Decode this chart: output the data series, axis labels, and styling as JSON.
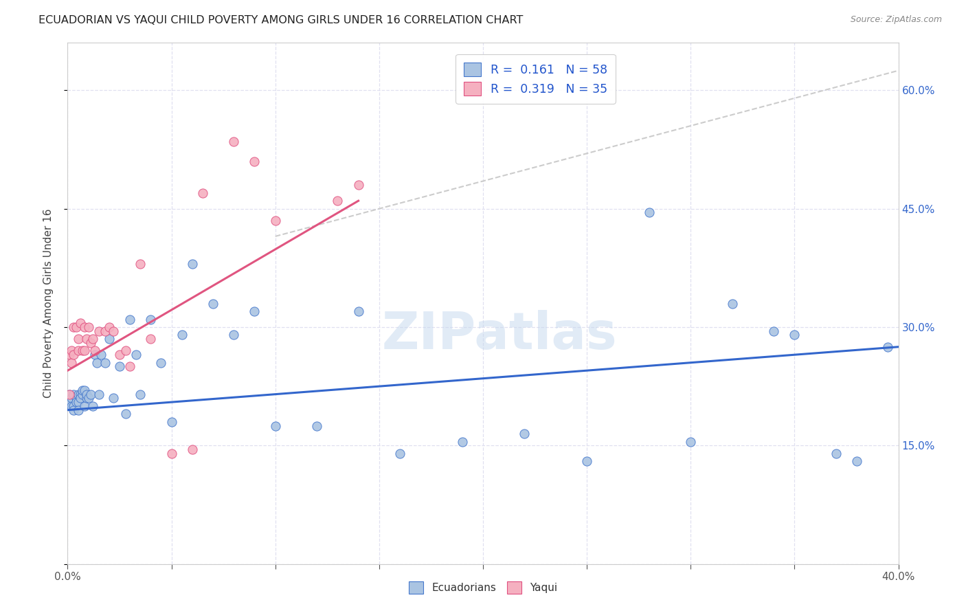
{
  "title": "ECUADORIAN VS YAQUI CHILD POVERTY AMONG GIRLS UNDER 16 CORRELATION CHART",
  "source": "Source: ZipAtlas.com",
  "ylabel": "Child Poverty Among Girls Under 16",
  "xlim": [
    0.0,
    0.4
  ],
  "ylim": [
    0.0,
    0.66
  ],
  "yticks": [
    0.0,
    0.15,
    0.3,
    0.45,
    0.6
  ],
  "ytick_labels_right": [
    "",
    "15.0%",
    "30.0%",
    "45.0%",
    "60.0%"
  ],
  "xtick_vals": [
    0.0,
    0.05,
    0.1,
    0.15,
    0.2,
    0.25,
    0.3,
    0.35,
    0.4
  ],
  "legend_line1": "R =  0.161   N = 58",
  "legend_line2": "R =  0.319   N = 35",
  "watermark": "ZIPatlas",
  "ecu_color": "#aac4e2",
  "ecu_edge": "#4477cc",
  "yaqui_color": "#f5b0c0",
  "yaqui_edge": "#e05080",
  "ecu_line_color": "#3366cc",
  "yaqui_line_color": "#e05580",
  "dash_color": "#cccccc",
  "grid_color": "#e0e0f0",
  "ecuadorians_x": [
    0.001,
    0.001,
    0.002,
    0.002,
    0.003,
    0.003,
    0.003,
    0.004,
    0.004,
    0.005,
    0.005,
    0.005,
    0.006,
    0.006,
    0.007,
    0.007,
    0.008,
    0.008,
    0.009,
    0.009,
    0.01,
    0.011,
    0.012,
    0.013,
    0.014,
    0.015,
    0.016,
    0.018,
    0.02,
    0.022,
    0.025,
    0.028,
    0.03,
    0.033,
    0.035,
    0.04,
    0.045,
    0.05,
    0.055,
    0.06,
    0.07,
    0.08,
    0.09,
    0.1,
    0.12,
    0.14,
    0.16,
    0.19,
    0.22,
    0.25,
    0.28,
    0.3,
    0.32,
    0.34,
    0.35,
    0.37,
    0.38,
    0.395
  ],
  "ecuadorians_y": [
    0.215,
    0.205,
    0.21,
    0.2,
    0.215,
    0.2,
    0.195,
    0.21,
    0.205,
    0.215,
    0.205,
    0.195,
    0.215,
    0.21,
    0.215,
    0.22,
    0.22,
    0.2,
    0.21,
    0.215,
    0.21,
    0.215,
    0.2,
    0.265,
    0.255,
    0.215,
    0.265,
    0.255,
    0.285,
    0.21,
    0.25,
    0.19,
    0.31,
    0.265,
    0.215,
    0.31,
    0.255,
    0.18,
    0.29,
    0.38,
    0.33,
    0.29,
    0.32,
    0.175,
    0.175,
    0.32,
    0.14,
    0.155,
    0.165,
    0.13,
    0.445,
    0.155,
    0.33,
    0.295,
    0.29,
    0.14,
    0.13,
    0.275
  ],
  "yaqui_x": [
    0.001,
    0.001,
    0.002,
    0.002,
    0.003,
    0.003,
    0.004,
    0.005,
    0.005,
    0.006,
    0.007,
    0.008,
    0.008,
    0.009,
    0.01,
    0.011,
    0.012,
    0.013,
    0.015,
    0.018,
    0.02,
    0.022,
    0.025,
    0.028,
    0.03,
    0.035,
    0.04,
    0.05,
    0.06,
    0.065,
    0.08,
    0.09,
    0.1,
    0.13,
    0.14
  ],
  "yaqui_y": [
    0.265,
    0.215,
    0.27,
    0.255,
    0.265,
    0.3,
    0.3,
    0.27,
    0.285,
    0.305,
    0.27,
    0.3,
    0.27,
    0.285,
    0.3,
    0.28,
    0.285,
    0.27,
    0.295,
    0.295,
    0.3,
    0.295,
    0.265,
    0.27,
    0.25,
    0.38,
    0.285,
    0.14,
    0.145,
    0.47,
    0.535,
    0.51,
    0.435,
    0.46,
    0.48
  ],
  "ecu_line_x": [
    0.0,
    0.4
  ],
  "ecu_line_y": [
    0.195,
    0.275
  ],
  "yaqui_line_x": [
    0.0,
    0.14
  ],
  "yaqui_line_y": [
    0.245,
    0.46
  ],
  "dash_line_x": [
    0.1,
    0.4
  ],
  "dash_line_y": [
    0.415,
    0.625
  ]
}
